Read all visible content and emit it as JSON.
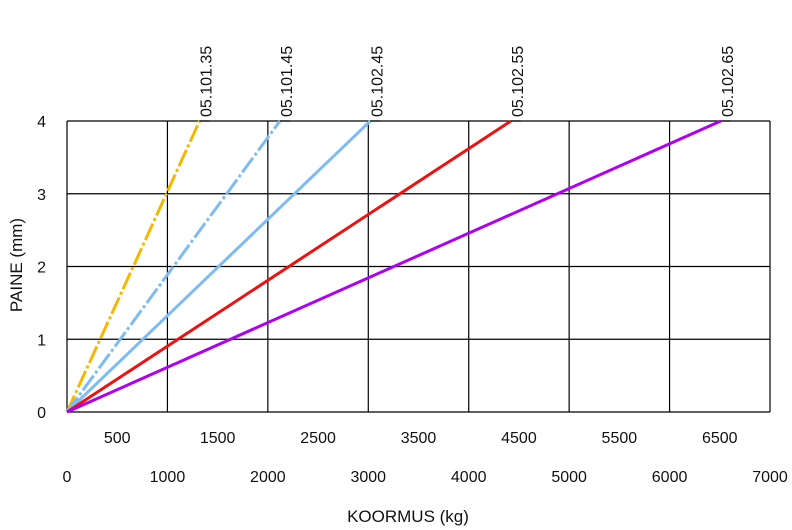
{
  "chart_data": {
    "type": "line",
    "xlabel": "KOORMUS (kg)",
    "ylabel": "PAINE (mm)",
    "xlim": [
      0,
      7000
    ],
    "ylim": [
      0,
      4
    ],
    "x_ticks_primary": [
      "0",
      "1000",
      "2000",
      "3000",
      "4000",
      "5000",
      "6000",
      "7000"
    ],
    "x_ticks_secondary": [
      "500",
      "1500",
      "2500",
      "3500",
      "4500",
      "5500",
      "6500"
    ],
    "y_ticks": [
      "0",
      "1",
      "2",
      "3",
      "4"
    ],
    "grid": true,
    "series": [
      {
        "name": "05.101.35",
        "color": "#f5b800",
        "dash": "dash-dot",
        "points": [
          [
            0,
            0
          ],
          [
            1320,
            4
          ]
        ]
      },
      {
        "name": "05.101.45",
        "color": "#7dbcf2",
        "dash": "dash-dot",
        "points": [
          [
            0,
            0
          ],
          [
            2120,
            4
          ]
        ]
      },
      {
        "name": "05.102.45",
        "color": "#7dbcf2",
        "dash": "solid",
        "points": [
          [
            0,
            0
          ],
          [
            3020,
            4
          ]
        ]
      },
      {
        "name": "05.102.55",
        "color": "#ee1111",
        "dash": "solid",
        "points": [
          [
            0,
            0
          ],
          [
            4420,
            4
          ]
        ]
      },
      {
        "name": "05.102.65",
        "color": "#b000f0",
        "dash": "solid",
        "points": [
          [
            0,
            0
          ],
          [
            6510,
            4
          ]
        ]
      }
    ]
  }
}
